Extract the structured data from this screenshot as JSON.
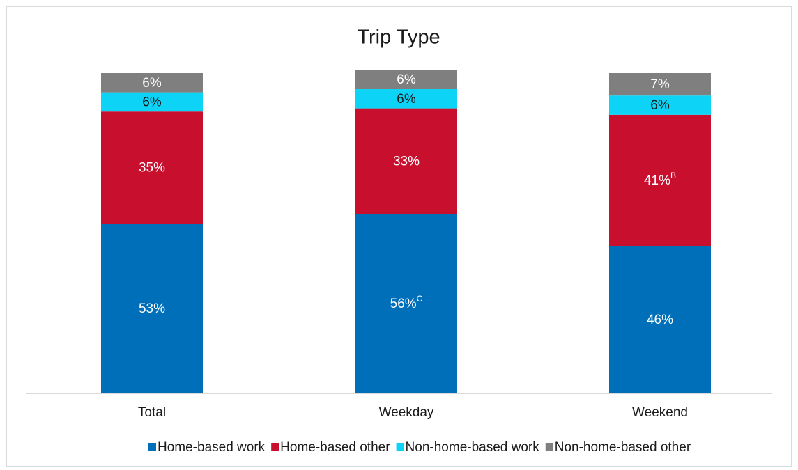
{
  "chart_data": {
    "type": "stacked_bar",
    "title": "Trip Type",
    "categories": [
      "Total",
      "Weekday",
      "Weekend"
    ],
    "ylim": [
      0,
      100
    ],
    "series": [
      {
        "name": "Home-based work",
        "color": "#006fb9",
        "values": [
          53,
          56,
          46
        ],
        "value_labels": [
          "53%",
          "56%",
          "46%"
        ],
        "label_notes": [
          null,
          "C",
          null
        ]
      },
      {
        "name": "Home-based other",
        "color": "#c8102e",
        "values": [
          35,
          33,
          41
        ],
        "value_labels": [
          "35%",
          "33%",
          "41%"
        ],
        "label_notes": [
          null,
          null,
          "B"
        ]
      },
      {
        "name": "Non-home-based work",
        "color": "#0dd3f6",
        "values": [
          6,
          6,
          6
        ],
        "value_labels": [
          "6%",
          "6%",
          "6%"
        ],
        "label_notes": [
          null,
          null,
          null
        ]
      },
      {
        "name": "Non-home-based other",
        "color": "#7f7f7f",
        "values": [
          6,
          6,
          7
        ],
        "value_labels": [
          "6%",
          "6%",
          "7%"
        ],
        "label_notes": [
          null,
          null,
          null
        ]
      }
    ]
  }
}
